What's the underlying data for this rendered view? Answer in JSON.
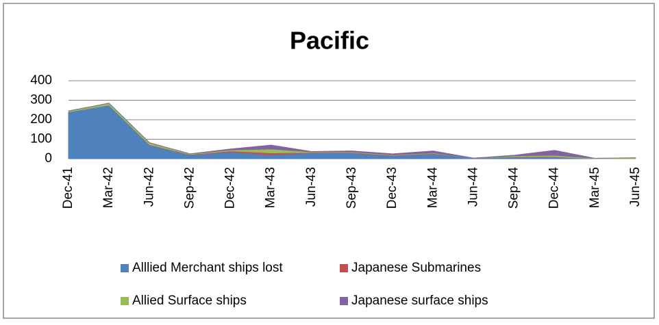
{
  "chart_data": {
    "type": "stacked_area",
    "title": "Pacific",
    "categories": [
      "Dec-41",
      "Mar-42",
      "Jun-42",
      "Sep-42",
      "Dec-42",
      "Mar-43",
      "Jun-43",
      "Sep-43",
      "Dec-43",
      "Mar-44",
      "Jun-44",
      "Sep-44",
      "Dec-44",
      "Mar-45",
      "Jun-45"
    ],
    "series": [
      {
        "name": "Alllied Merchant ships lost",
        "color": "#4f81bd",
        "values": [
          240,
          275,
          70,
          20,
          35,
          20,
          30,
          30,
          15,
          25,
          3,
          8,
          8,
          0,
          0
        ]
      },
      {
        "name": "Japanese Submarines",
        "color": "#c0504d",
        "values": [
          0,
          0,
          2,
          2,
          5,
          10,
          2,
          2,
          2,
          2,
          0,
          2,
          2,
          0,
          0
        ]
      },
      {
        "name": "Allied Surface ships",
        "color": "#9bbb59",
        "values": [
          5,
          10,
          10,
          3,
          5,
          20,
          3,
          3,
          3,
          3,
          0,
          5,
          8,
          2,
          5
        ]
      },
      {
        "name": "Japanese surface ships",
        "color": "#8064a2",
        "values": [
          0,
          0,
          0,
          0,
          5,
          20,
          2,
          5,
          5,
          10,
          0,
          3,
          25,
          0,
          0
        ]
      }
    ],
    "ylim": [
      0,
      400
    ],
    "yticks": [
      0,
      100,
      200,
      300,
      400
    ],
    "grid": true
  }
}
